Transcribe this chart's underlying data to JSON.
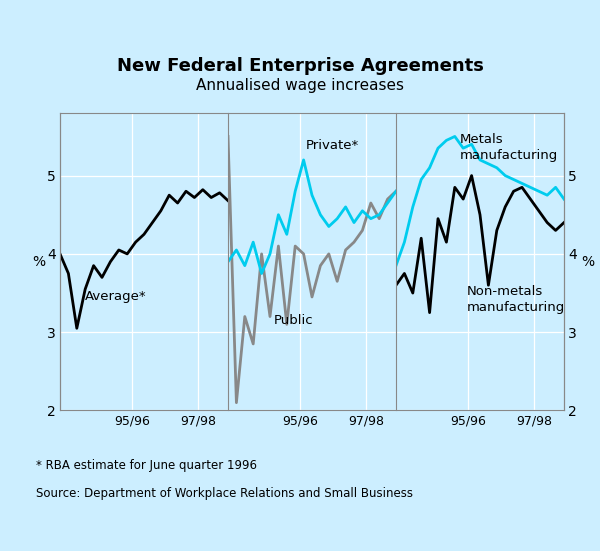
{
  "title": "New Federal Enterprise Agreements",
  "subtitle": "Annualised wage increases",
  "footnote1": "* RBA estimate for June quarter 1996",
  "footnote2": "Source: Department of Workplace Relations and Small Business",
  "ylabel_left": "%",
  "ylabel_right": "%",
  "ylim": [
    2.0,
    5.8
  ],
  "yticks": [
    2,
    3,
    4,
    5
  ],
  "background_color": "#cceeff",
  "avg_y": [
    4.0,
    3.75,
    3.05,
    3.55,
    3.85,
    3.7,
    3.9,
    4.05,
    4.0,
    4.15,
    4.25,
    4.4,
    4.55,
    4.75,
    4.65,
    4.8,
    4.72,
    4.82,
    4.72,
    4.78,
    4.68
  ],
  "priv_y": [
    3.9,
    4.05,
    3.85,
    4.15,
    3.75,
    4.0,
    4.5,
    4.25,
    4.8,
    5.2,
    4.75,
    4.5,
    4.35,
    4.45,
    4.6,
    4.4,
    4.55,
    4.45,
    4.5,
    4.65,
    4.8
  ],
  "pub_y": [
    5.5,
    2.1,
    3.2,
    2.85,
    4.0,
    3.2,
    4.1,
    3.1,
    4.1,
    4.0,
    3.45,
    3.85,
    4.0,
    3.65,
    4.05,
    4.15,
    4.3,
    4.65,
    4.45,
    4.7,
    4.8
  ],
  "metals_y": [
    3.85,
    4.15,
    4.6,
    4.95,
    5.1,
    5.35,
    5.45,
    5.5,
    5.35,
    5.4,
    5.2,
    5.15,
    5.1,
    5.0,
    4.95,
    4.9,
    4.85,
    4.8,
    4.75,
    4.85,
    4.7
  ],
  "nonmetals_y": [
    3.6,
    3.75,
    3.5,
    4.2,
    3.25,
    4.45,
    4.15,
    4.85,
    4.7,
    5.0,
    4.5,
    3.6,
    4.3,
    4.6,
    4.8,
    4.85,
    4.7,
    4.55,
    4.4,
    4.3,
    4.4
  ],
  "avg_color": "#000000",
  "priv_color": "#00ccee",
  "pub_color": "#888888",
  "metals_color": "#00ccee",
  "nonmetals_color": "#000000",
  "line_width": 2.0,
  "tick_9596": 0.43,
  "tick_9798": 0.82
}
